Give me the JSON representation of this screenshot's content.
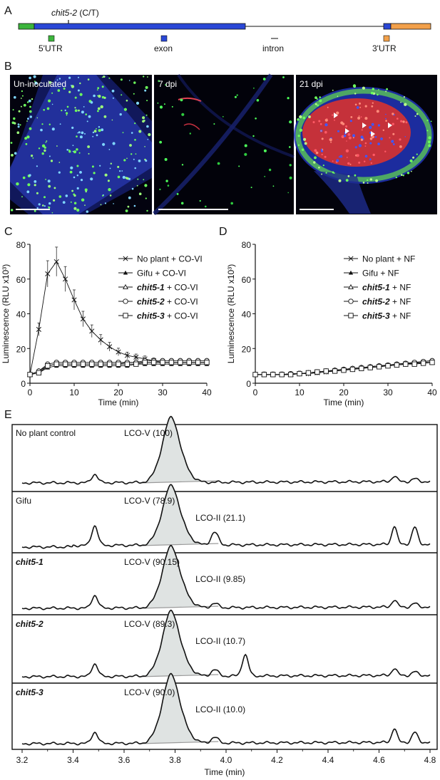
{
  "panels": {
    "A": {
      "label": "A",
      "mutation_gene": "chit5-2",
      "mutation_change": " (C/T)",
      "legend": [
        {
          "text": "5'UTR",
          "color": "#3cb53c"
        },
        {
          "text": "exon",
          "color": "#2a47d6"
        },
        {
          "text": "intron",
          "color": "#333333"
        },
        {
          "text": "3'UTR",
          "color": "#f2a04a"
        }
      ]
    },
    "B": {
      "label": "B",
      "images": [
        "Un-inoculated",
        "7 dpi",
        "21 dpi"
      ]
    },
    "C": {
      "label": "C"
    },
    "D": {
      "label": "D"
    },
    "E": {
      "label": "E",
      "traces": [
        {
          "name": "No plant control",
          "italic": false,
          "lcov": "LCO-V (100)",
          "lcoii": ""
        },
        {
          "name": "Gifu",
          "italic": false,
          "lcov": "LCO-V (78.9)",
          "lcoii": "LCO-II (21.1)"
        },
        {
          "name": "chit5-1",
          "italic": true,
          "lcov": "LCO-V (90.15)",
          "lcoii": "LCO-II (9.85)"
        },
        {
          "name": "chit5-2",
          "italic": true,
          "lcov": "LCO-V (89.3)",
          "lcoii": "LCO-II (10.7)"
        },
        {
          "name": "chit5-3",
          "italic": true,
          "lcov": "LCO-V (90.0)",
          "lcoii": "LCO-II (10.0)"
        }
      ],
      "xticks": [
        "3.2",
        "3.4",
        "3.6",
        "3.8",
        "4.0",
        "4.2",
        "4.4",
        "4.6",
        "4.8"
      ],
      "xlabel": "Time (min)"
    }
  },
  "chart_data": [
    {
      "type": "line",
      "panel": "C",
      "ylabel": "Luminescence (RLU x10³)",
      "xlabel": "Time (min)",
      "xlim": [
        0,
        40
      ],
      "ylim": [
        0,
        80
      ],
      "xticks": [
        0,
        10,
        20,
        30,
        40
      ],
      "yticks": [
        0,
        20,
        40,
        60,
        80
      ],
      "legend_position": "top-right",
      "x": [
        0,
        2,
        4,
        6,
        8,
        10,
        12,
        14,
        16,
        18,
        20,
        22,
        24,
        26,
        28,
        30,
        32,
        34,
        36,
        38,
        40
      ],
      "series": [
        {
          "name": "No plant + CO-VI",
          "marker": "x",
          "values": [
            5,
            31,
            63,
            70,
            60,
            48,
            37,
            30,
            25,
            21,
            18,
            16,
            15,
            14,
            13,
            12,
            12,
            12,
            12,
            12,
            12
          ]
        },
        {
          "name": "Gifu + CO-VI",
          "marker": "filled-triangle",
          "values": [
            5,
            6,
            9,
            10,
            10,
            10,
            10,
            10,
            10,
            10,
            10,
            10,
            11,
            11,
            11,
            11,
            11,
            11,
            11,
            11,
            11
          ]
        },
        {
          "name": "chit5-1 + CO-VI",
          "marker": "open-triangle",
          "values": [
            5,
            7,
            10,
            11,
            11,
            11,
            11,
            11,
            11,
            11,
            11,
            12,
            12,
            12,
            12,
            12,
            12,
            12,
            12,
            12,
            12
          ]
        },
        {
          "name": "chit5-2 + CO-VI",
          "marker": "open-circle",
          "values": [
            5,
            7,
            11,
            12,
            12,
            12,
            12,
            12,
            12,
            12,
            12,
            12,
            12,
            13,
            13,
            13,
            13,
            13,
            13,
            13,
            13
          ]
        },
        {
          "name": "chit5-3 + CO-VI",
          "marker": "open-square",
          "values": [
            5,
            6,
            10,
            11,
            11,
            11,
            11,
            11,
            11,
            11,
            11,
            11,
            11,
            12,
            12,
            12,
            12,
            12,
            12,
            12,
            12
          ]
        }
      ]
    },
    {
      "type": "line",
      "panel": "D",
      "ylabel": "Luminescence (RLU x10³)",
      "xlabel": "Time (min)",
      "xlim": [
        0,
        40
      ],
      "ylim": [
        0,
        80
      ],
      "xticks": [
        0,
        10,
        20,
        30,
        40
      ],
      "yticks": [
        0,
        20,
        40,
        60,
        80
      ],
      "legend_position": "top-right",
      "x": [
        0,
        2,
        4,
        6,
        8,
        10,
        12,
        14,
        16,
        18,
        20,
        22,
        24,
        26,
        28,
        30,
        32,
        34,
        36,
        38,
        40
      ],
      "series": [
        {
          "name": "No plant + NF",
          "marker": "x",
          "values": [
            5,
            5,
            5,
            5,
            5,
            5.5,
            5.5,
            6,
            6.5,
            7,
            7.5,
            8,
            8.5,
            9,
            9.5,
            10,
            10.5,
            11,
            11.5,
            12,
            12
          ]
        },
        {
          "name": "Gifu + NF",
          "marker": "filled-triangle",
          "values": [
            5,
            5,
            5,
            5,
            5.5,
            5.5,
            6,
            6.5,
            7,
            7.5,
            8,
            8.5,
            9,
            9.5,
            10,
            10.5,
            11,
            11.5,
            12,
            12.5,
            13
          ]
        },
        {
          "name": "chit5-1 + NF",
          "marker": "open-triangle",
          "values": [
            5,
            5,
            5,
            5,
            5,
            5.5,
            6,
            6.5,
            7,
            7.5,
            8,
            8.5,
            9,
            9.5,
            10,
            10,
            10.5,
            11,
            11.5,
            12,
            12
          ]
        },
        {
          "name": "chit5-2 + NF",
          "marker": "open-circle",
          "values": [
            5,
            5,
            5,
            5,
            5.5,
            5.5,
            6,
            6.5,
            7,
            7.5,
            8,
            8.5,
            9,
            9.5,
            10,
            10.5,
            11,
            11.5,
            12,
            12.5,
            13
          ]
        },
        {
          "name": "chit5-3 + NF",
          "marker": "open-square",
          "values": [
            5,
            5,
            5,
            5,
            5,
            5.5,
            6,
            6.5,
            7,
            7,
            7.5,
            8,
            8.5,
            9,
            9.5,
            10,
            10.5,
            11,
            11,
            11.5,
            12
          ]
        }
      ]
    }
  ]
}
